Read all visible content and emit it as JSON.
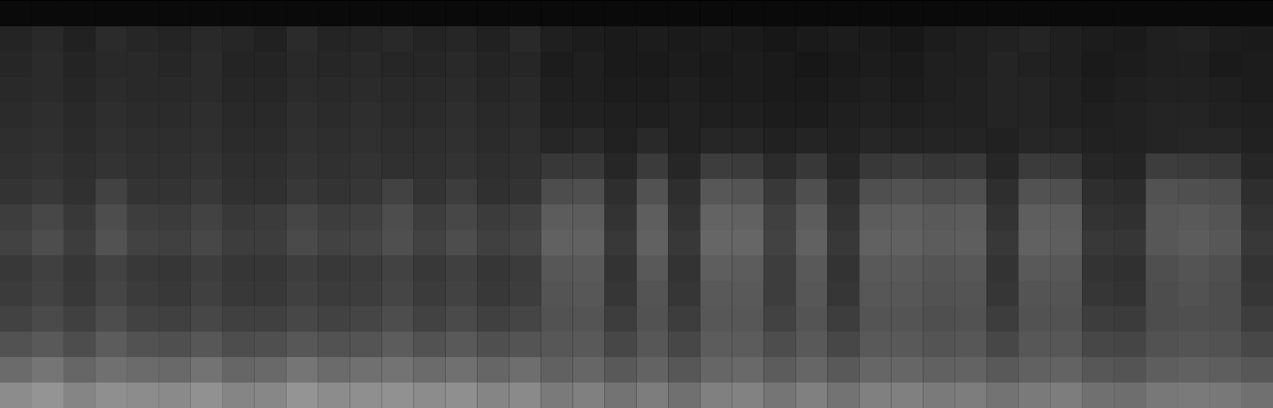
{
  "chart_data": {
    "type": "heatmap",
    "tick_labels": false,
    "zlim": [
      0,
      100
    ],
    "values": [
      [
        4,
        4,
        4,
        4,
        4,
        4,
        4,
        4,
        4,
        4,
        4,
        4,
        4,
        4,
        4,
        4,
        4,
        4,
        4,
        4,
        4,
        4,
        4,
        4,
        4,
        4,
        4,
        4,
        4,
        4,
        4,
        4,
        4,
        4,
        4,
        4,
        4,
        4,
        4,
        4
      ],
      [
        14,
        16,
        13,
        17,
        15,
        14,
        16,
        15,
        13,
        17,
        14,
        15,
        16,
        14,
        15,
        13,
        16,
        12,
        11,
        10,
        11,
        10,
        11,
        10,
        9,
        10,
        11,
        10,
        9,
        11,
        12,
        13,
        14,
        12,
        11,
        10,
        12,
        13,
        11,
        10
      ],
      [
        15,
        17,
        14,
        16,
        16,
        15,
        17,
        14,
        14,
        16,
        15,
        16,
        15,
        15,
        16,
        14,
        15,
        11,
        12,
        10,
        10,
        11,
        10,
        11,
        10,
        9,
        10,
        11,
        10,
        12,
        12,
        14,
        13,
        12,
        10,
        11,
        12,
        12,
        10,
        11
      ],
      [
        16,
        17,
        15,
        17,
        16,
        16,
        17,
        15,
        15,
        17,
        16,
        17,
        16,
        16,
        17,
        15,
        16,
        12,
        12,
        11,
        11,
        12,
        11,
        11,
        10,
        10,
        11,
        12,
        11,
        12,
        13,
        14,
        14,
        13,
        11,
        12,
        13,
        13,
        12,
        11
      ],
      [
        17,
        18,
        16,
        18,
        17,
        17,
        18,
        16,
        16,
        18,
        17,
        18,
        17,
        17,
        18,
        16,
        17,
        13,
        13,
        12,
        12,
        13,
        12,
        12,
        11,
        11,
        12,
        13,
        12,
        13,
        13,
        14,
        14,
        13,
        12,
        13,
        14,
        14,
        13,
        12
      ],
      [
        18,
        19,
        17,
        19,
        18,
        18,
        19,
        17,
        17,
        19,
        18,
        19,
        18,
        18,
        19,
        17,
        18,
        15,
        16,
        13,
        16,
        13,
        15,
        15,
        13,
        14,
        13,
        15,
        14,
        14,
        14,
        13,
        15,
        15,
        13,
        13,
        14,
        15,
        15,
        13
      ],
      [
        19,
        20,
        18,
        20,
        19,
        19,
        20,
        18,
        18,
        20,
        19,
        20,
        19,
        19,
        20,
        18,
        19,
        22,
        22,
        15,
        23,
        15,
        24,
        23,
        17,
        22,
        15,
        22,
        23,
        21,
        22,
        15,
        23,
        22,
        15,
        14,
        24,
        23,
        22,
        15
      ],
      [
        20,
        22,
        19,
        26,
        20,
        20,
        22,
        19,
        19,
        22,
        20,
        21,
        26,
        20,
        24,
        19,
        20,
        30,
        31,
        18,
        32,
        18,
        34,
        33,
        22,
        31,
        18,
        31,
        32,
        30,
        31,
        18,
        32,
        31,
        18,
        17,
        32,
        31,
        30,
        18
      ],
      [
        24,
        28,
        22,
        30,
        24,
        23,
        26,
        22,
        23,
        27,
        24,
        25,
        30,
        24,
        28,
        23,
        25,
        36,
        36,
        20,
        37,
        20,
        39,
        38,
        25,
        36,
        20,
        36,
        37,
        35,
        36,
        20,
        37,
        36,
        20,
        19,
        34,
        35,
        33,
        20
      ],
      [
        26,
        30,
        24,
        32,
        26,
        25,
        28,
        24,
        24,
        29,
        26,
        27,
        31,
        26,
        30,
        25,
        27,
        38,
        38,
        22,
        38,
        22,
        40,
        40,
        26,
        38,
        22,
        38,
        38,
        36,
        37,
        22,
        38,
        37,
        22,
        21,
        34,
        36,
        34,
        22
      ],
      [
        22,
        25,
        21,
        26,
        22,
        21,
        24,
        21,
        21,
        24,
        22,
        23,
        26,
        22,
        25,
        21,
        23,
        34,
        35,
        20,
        35,
        20,
        37,
        36,
        24,
        35,
        20,
        35,
        35,
        33,
        34,
        20,
        35,
        34,
        20,
        19,
        31,
        33,
        31,
        20
      ],
      [
        23,
        26,
        22,
        27,
        23,
        22,
        25,
        22,
        22,
        25,
        23,
        24,
        27,
        23,
        26,
        22,
        24,
        33,
        34,
        21,
        33,
        21,
        35,
        35,
        24,
        34,
        21,
        34,
        34,
        32,
        33,
        21,
        33,
        33,
        21,
        20,
        30,
        32,
        30,
        21
      ],
      [
        26,
        29,
        25,
        30,
        26,
        25,
        28,
        25,
        25,
        28,
        26,
        27,
        30,
        26,
        29,
        25,
        27,
        32,
        33,
        24,
        32,
        24,
        34,
        34,
        26,
        33,
        24,
        33,
        33,
        31,
        32,
        24,
        32,
        32,
        24,
        23,
        30,
        31,
        30,
        24
      ],
      [
        32,
        35,
        30,
        36,
        32,
        31,
        34,
        30,
        31,
        34,
        32,
        33,
        36,
        32,
        35,
        31,
        33,
        34,
        35,
        28,
        34,
        28,
        36,
        36,
        30,
        35,
        28,
        35,
        35,
        33,
        34,
        28,
        34,
        34,
        28,
        27,
        32,
        33,
        32,
        28
      ],
      [
        42,
        46,
        40,
        44,
        42,
        41,
        45,
        40,
        41,
        46,
        42,
        44,
        45,
        42,
        44,
        40,
        43,
        38,
        40,
        35,
        39,
        34,
        40,
        41,
        36,
        40,
        35,
        40,
        40,
        38,
        39,
        35,
        38,
        39,
        34,
        33,
        37,
        38,
        37,
        34
      ],
      [
        55,
        58,
        52,
        56,
        55,
        54,
        57,
        52,
        53,
        58,
        55,
        56,
        57,
        55,
        56,
        52,
        54,
        48,
        50,
        45,
        49,
        44,
        50,
        51,
        46,
        50,
        45,
        50,
        50,
        48,
        49,
        45,
        48,
        49,
        44,
        43,
        47,
        48,
        47,
        44
      ]
    ]
  }
}
